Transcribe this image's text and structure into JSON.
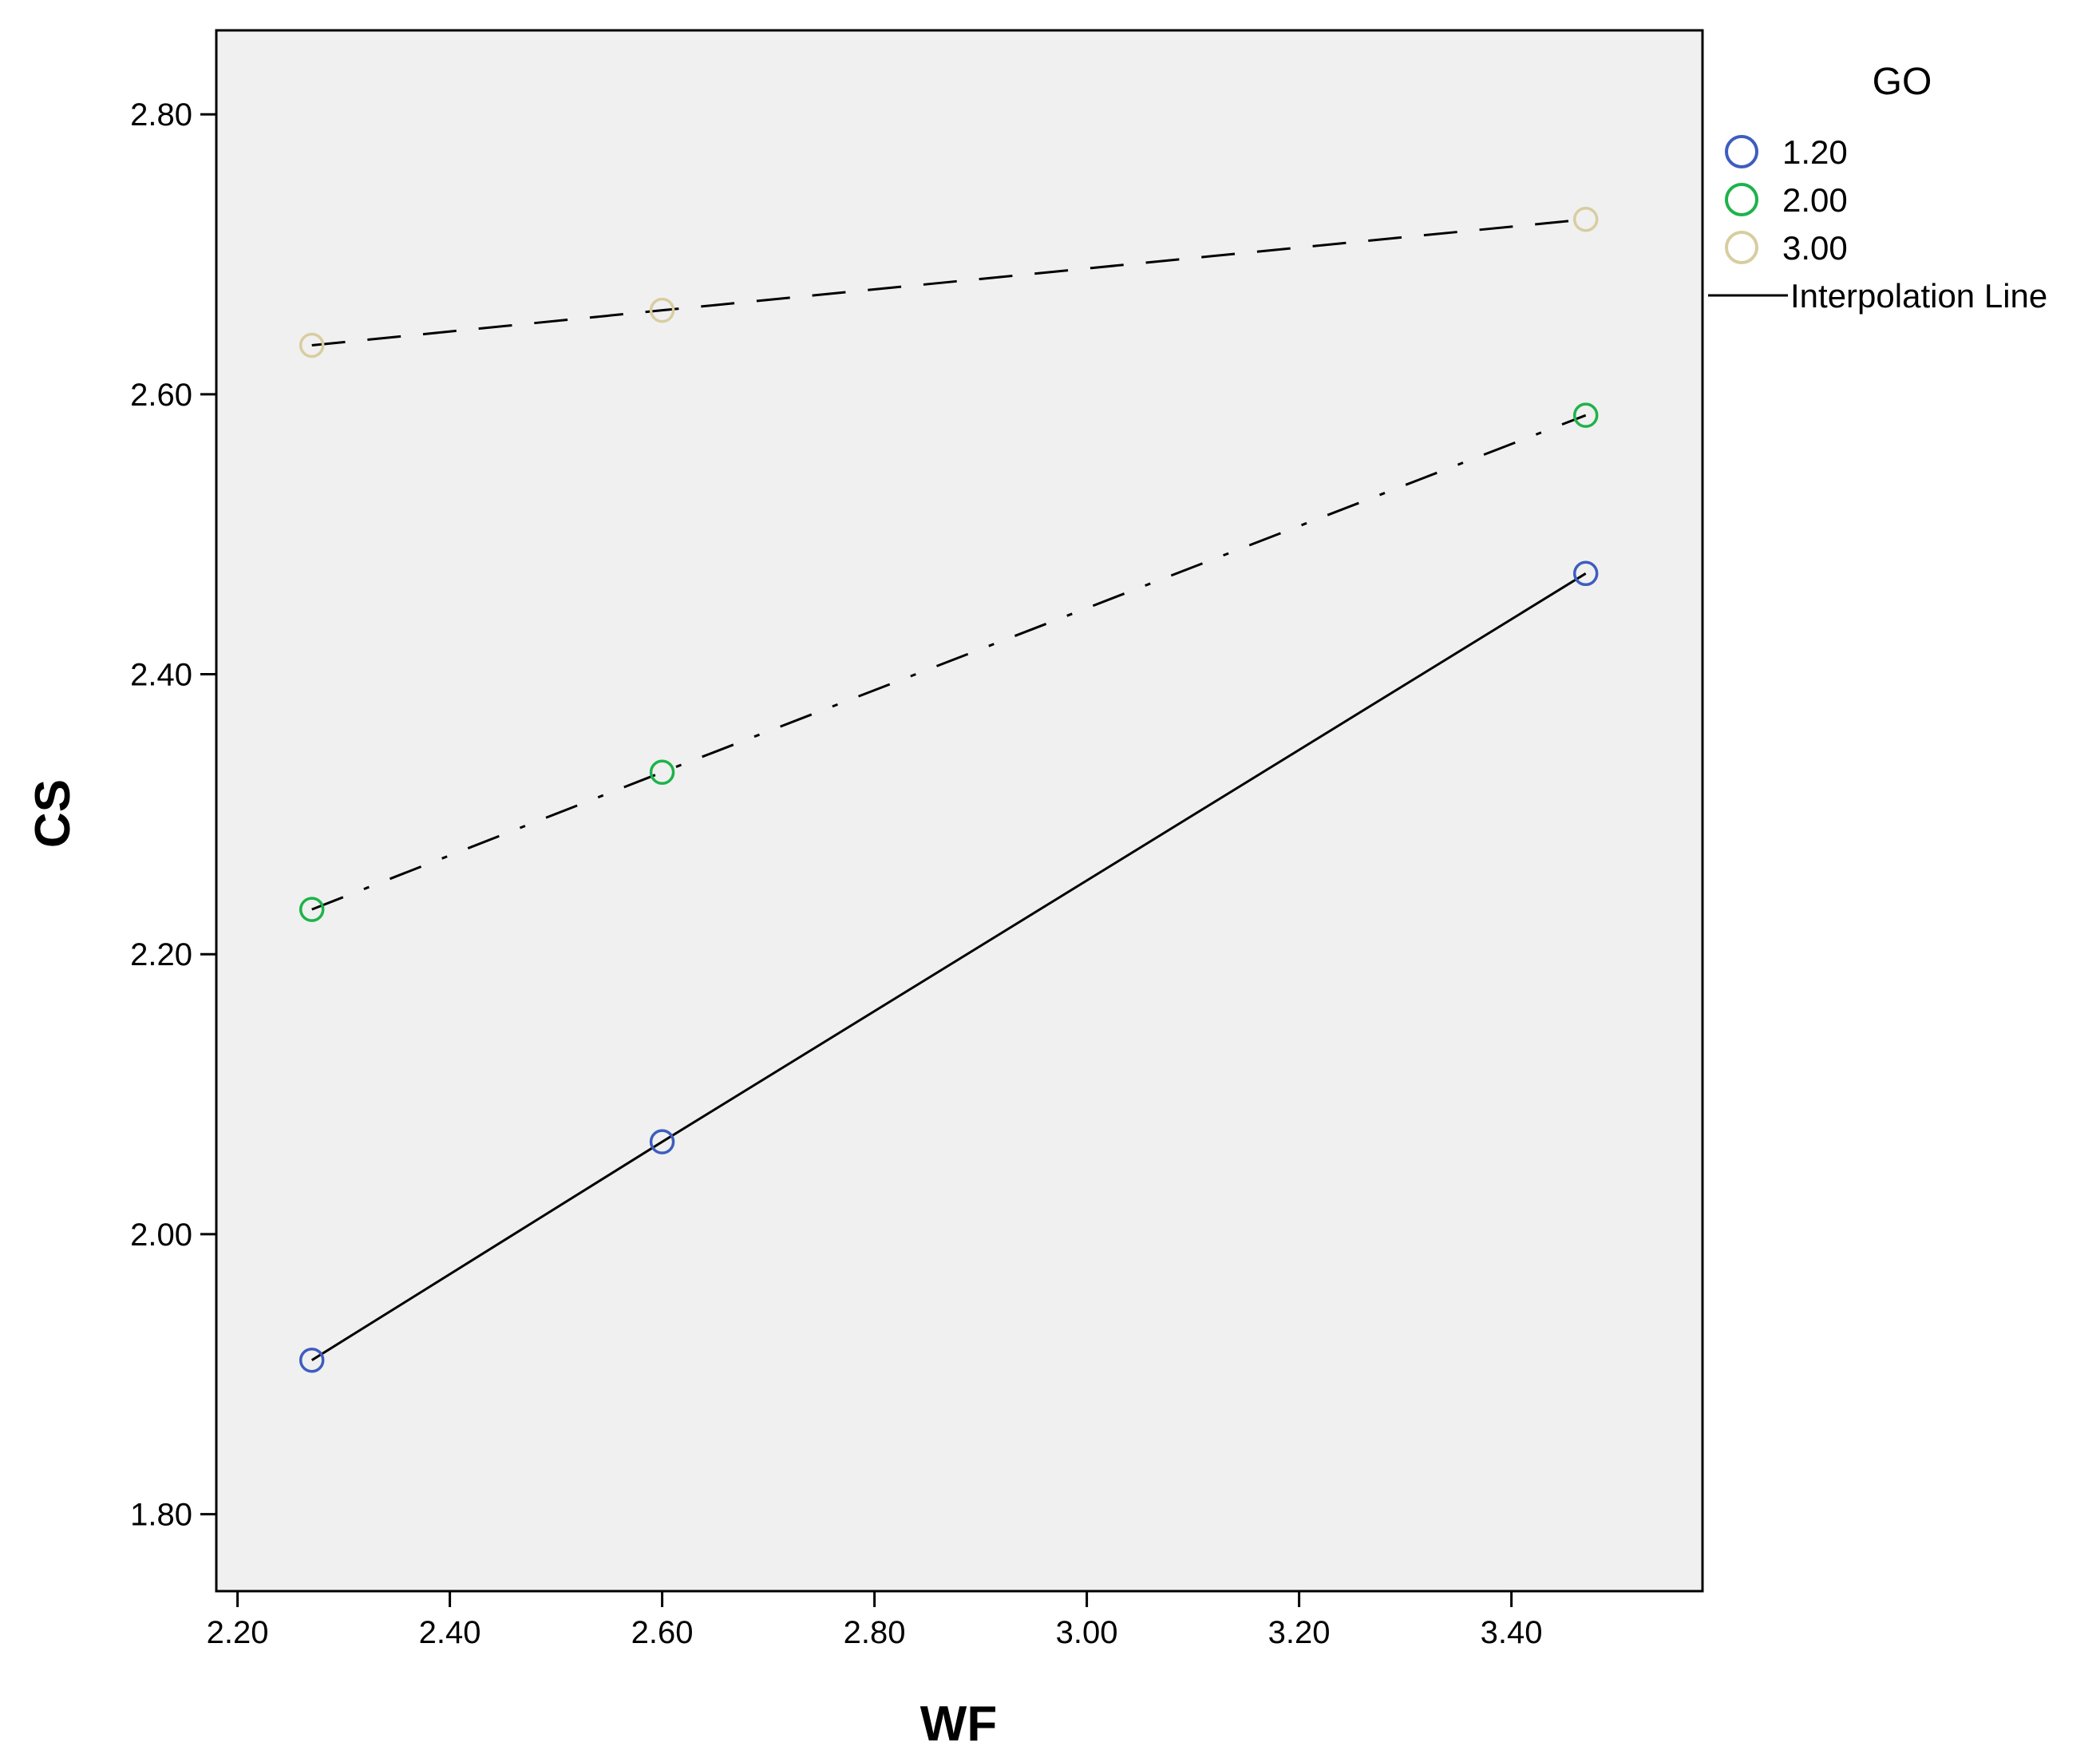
{
  "chart_data": {
    "type": "line",
    "title": "",
    "xlabel": "WF",
    "ylabel": "CS",
    "xlim": [
      2.18,
      3.58
    ],
    "ylim": [
      1.745,
      2.86
    ],
    "x_ticks": [
      "2.20",
      "2.40",
      "2.60",
      "2.80",
      "3.00",
      "3.20",
      "3.40"
    ],
    "y_ticks": [
      "1.80",
      "2.00",
      "2.20",
      "2.40",
      "2.60",
      "2.80"
    ],
    "grid": false,
    "background": "#f0f0f0",
    "legend_title": "GO",
    "legend_position": "right",
    "series": [
      {
        "name": "1.20",
        "color": "#3d5dbf",
        "line_style": "solid",
        "x": [
          2.27,
          2.6,
          3.47
        ],
        "y": [
          1.91,
          2.066,
          2.472
        ]
      },
      {
        "name": "2.00",
        "color": "#1db34a",
        "line_style": "dash-dot",
        "x": [
          2.27,
          2.6,
          3.47
        ],
        "y": [
          2.232,
          2.33,
          2.585
        ]
      },
      {
        "name": "3.00",
        "color": "#d8cda0",
        "line_style": "dashed",
        "x": [
          2.27,
          2.6,
          3.47
        ],
        "y": [
          2.635,
          2.66,
          2.725
        ]
      }
    ],
    "legend_line_label": "Interpolation Line"
  }
}
